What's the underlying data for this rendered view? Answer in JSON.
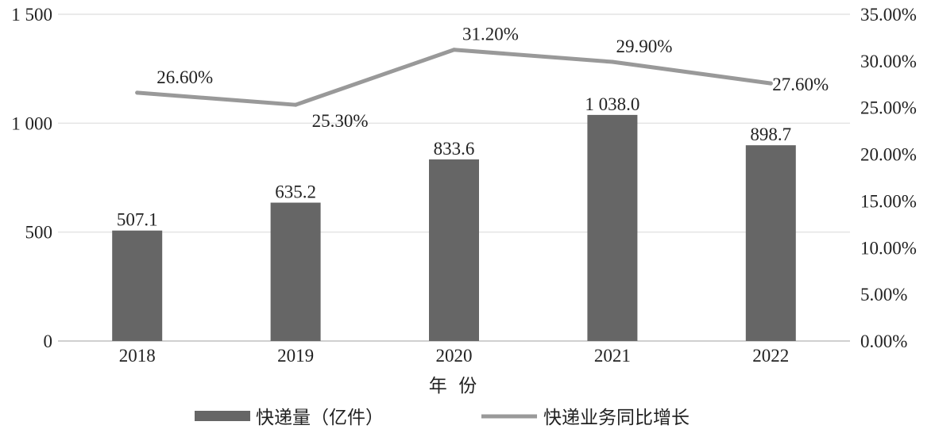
{
  "chart_data": {
    "type": "bar",
    "categories": [
      "2018",
      "2019",
      "2020",
      "2021",
      "2022"
    ],
    "xlabel": "年  份",
    "series": [
      {
        "name": "快递量（亿件）",
        "type": "bar",
        "axis": "left",
        "values": [
          507.1,
          635.2,
          833.6,
          1038.0,
          898.7
        ],
        "labels": [
          "507.1",
          "635.2",
          "833.6",
          "1 038.0",
          "898.7"
        ],
        "color": "#666666"
      },
      {
        "name": "快递业务同比增长",
        "type": "line",
        "axis": "right",
        "values": [
          26.6,
          25.3,
          31.2,
          29.9,
          27.6
        ],
        "labels": [
          "26.60%",
          "25.30%",
          "31.20%",
          "29.90%",
          "27.60%"
        ],
        "color": "#999999"
      }
    ],
    "y_left": {
      "ylim": [
        0,
        1500
      ],
      "ticks": [
        0,
        500,
        1000,
        1500
      ],
      "tick_labels": [
        "0",
        "500",
        "1 000",
        "1 500"
      ]
    },
    "y_right": {
      "ylim": [
        0,
        35
      ],
      "ticks": [
        0,
        5,
        10,
        15,
        20,
        25,
        30,
        35
      ],
      "tick_labels": [
        "0.00%",
        "5.00%",
        "10.00%",
        "15.00%",
        "20.00%",
        "25.00%",
        "30.00%",
        "35.00%"
      ]
    },
    "grid": true,
    "legend": "bottom"
  }
}
